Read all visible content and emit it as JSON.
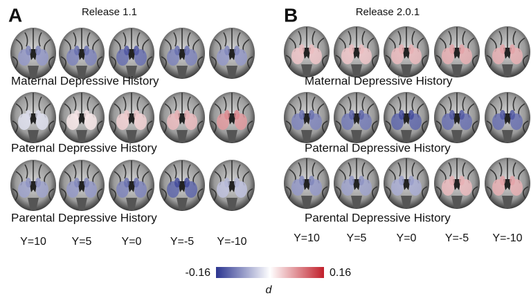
{
  "panels": [
    {
      "letter": "A",
      "title": "Release 1.1",
      "rows": [
        "Maternal Depressive History",
        "Paternal Depressive History",
        "Parental Depressive History"
      ],
      "slices": [
        "Y=10",
        "Y=5",
        "Y=0",
        "Y=-5",
        "Y=-10"
      ]
    },
    {
      "letter": "B",
      "title": "Release 2.0.1",
      "rows": [
        "Maternal Depressive History",
        "Paternal Depressive History",
        "Parental Depressive History"
      ],
      "slices": [
        "Y=10",
        "Y=5",
        "Y=0",
        "Y=-5",
        "Y=-10"
      ]
    }
  ],
  "colorbar": {
    "min": -0.16,
    "max": 0.16,
    "label": "d"
  }
}
